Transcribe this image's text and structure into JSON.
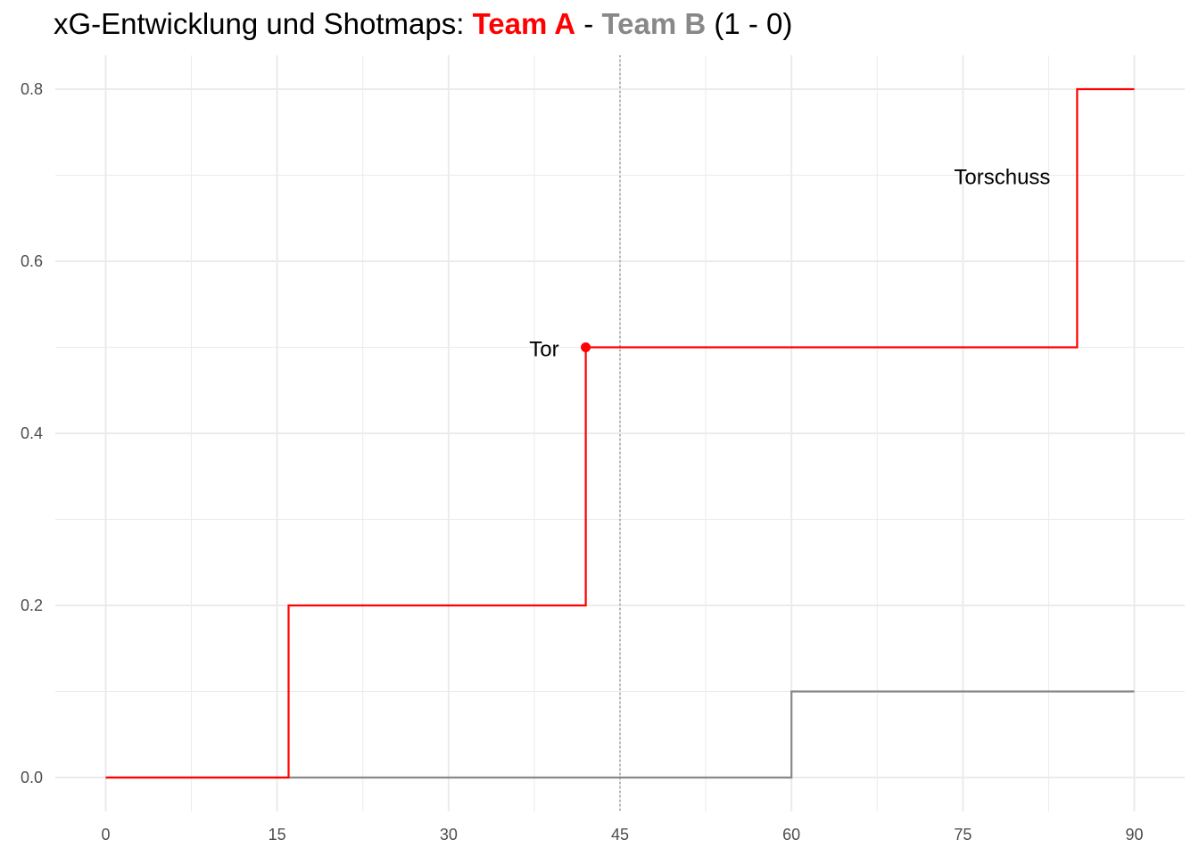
{
  "title": {
    "prefix": "xG-Entwicklung und Shotmaps: ",
    "team_a": "Team A",
    "separator": " - ",
    "team_b": "Team B",
    "score": " (1 - 0)"
  },
  "colors": {
    "team_a": "#ff0000",
    "team_b": "#888888",
    "grid": "#ebebeb",
    "halftime_line": "#b3b3b3"
  },
  "chart_data": {
    "type": "line",
    "step": true,
    "xlabel": "",
    "ylabel": "",
    "xlim": [
      0,
      90
    ],
    "ylim": [
      0,
      0.8
    ],
    "x_ticks": [
      0,
      15,
      30,
      45,
      60,
      75,
      90
    ],
    "y_ticks": [
      0.0,
      0.2,
      0.4,
      0.6,
      0.8
    ],
    "x_tick_labels": [
      "0",
      "15",
      "30",
      "45",
      "60",
      "75",
      "90"
    ],
    "y_tick_labels": [
      "0.0",
      "0.2",
      "0.4",
      "0.6",
      "0.8"
    ],
    "grid": true,
    "legend": "none",
    "halftime_minute": 45,
    "series": [
      {
        "color": "#ff0000",
        "points": [
          [
            0,
            0
          ],
          [
            16,
            0
          ],
          [
            16,
            0.2
          ],
          [
            42,
            0.2
          ],
          [
            42,
            0.5
          ],
          [
            85,
            0.5
          ],
          [
            85,
            0.8
          ],
          [
            90,
            0.8
          ]
        ]
      },
      {
        "color": "#888888",
        "points": [
          [
            0,
            0
          ],
          [
            60,
            0
          ],
          [
            60,
            0.1
          ],
          [
            90,
            0.1
          ]
        ]
      }
    ],
    "goal_markers": [
      {
        "minute": 42,
        "xg": 0.5,
        "color": "#ff0000"
      }
    ],
    "annotations": [
      {
        "text": "Tor",
        "minute": 42,
        "xg": 0.5,
        "anchor": "left-of-point"
      },
      {
        "text": "Torschuss",
        "minute": 85,
        "xg": 0.7,
        "anchor": "left-of-point"
      }
    ]
  }
}
